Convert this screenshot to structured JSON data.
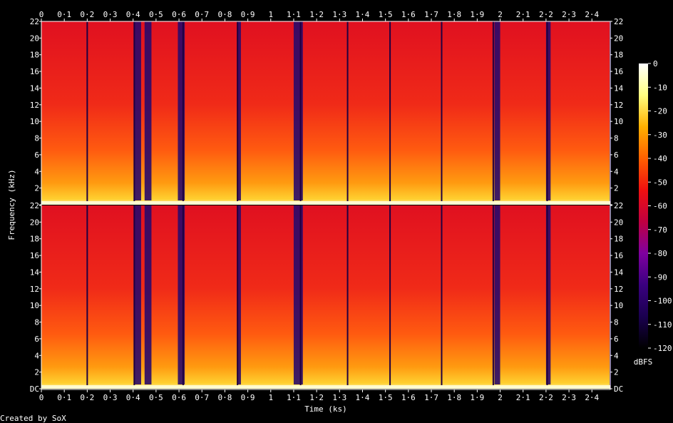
{
  "chart_data": {
    "type": "heatmap",
    "title": "",
    "xlabel": "Time (ks)",
    "ylabel": "Frequency (kHz)",
    "colorbar_label": "dBFS",
    "footer": "Created by SoX",
    "x_ticks": [
      "0",
      "0·1",
      "0·2",
      "0·3",
      "0·4",
      "0·5",
      "0·6",
      "0·7",
      "0·8",
      "0·9",
      "1",
      "1·1",
      "1·2",
      "1·3",
      "1·4",
      "1·5",
      "1·6",
      "1·7",
      "1·8",
      "1·9",
      "2",
      "2·1",
      "2·2",
      "2·3",
      "2·4"
    ],
    "x_range": [
      0,
      2.48
    ],
    "y_ticks": [
      "DC",
      "2",
      "4",
      "6",
      "8",
      "10",
      "12",
      "14",
      "16",
      "18",
      "20",
      "22"
    ],
    "y_range_khz": [
      0,
      22
    ],
    "channels": 2,
    "colorbar_ticks": [
      "0",
      "-10",
      "-20",
      "-30",
      "-40",
      "-50",
      "-60",
      "-70",
      "-80",
      "-90",
      "-100",
      "-110",
      "-120"
    ],
    "colorbar_range_db": [
      -120,
      0
    ],
    "segment_boundaries_ks": [
      0.2,
      0.405,
      0.618,
      0.855,
      1.13,
      1.335,
      1.52,
      1.745,
      1.97,
      2.205,
      2.48
    ],
    "quiet_gaps_ks": [
      [
        0.405,
        0.435
      ],
      [
        0.45,
        0.48
      ],
      [
        0.595,
        0.625
      ],
      [
        0.855,
        0.87
      ],
      [
        1.1,
        1.14
      ],
      [
        1.975,
        2.0
      ],
      [
        2.2,
        2.22
      ]
    ],
    "colors": {
      "background": "#000000",
      "text": "#ffffff",
      "colormap": [
        "#000000",
        "#1a0050",
        "#3a0080",
        "#7f00a0",
        "#c00040",
        "#f01010",
        "#ff6000",
        "#ffb000",
        "#ffff80",
        "#ffffff"
      ]
    }
  }
}
